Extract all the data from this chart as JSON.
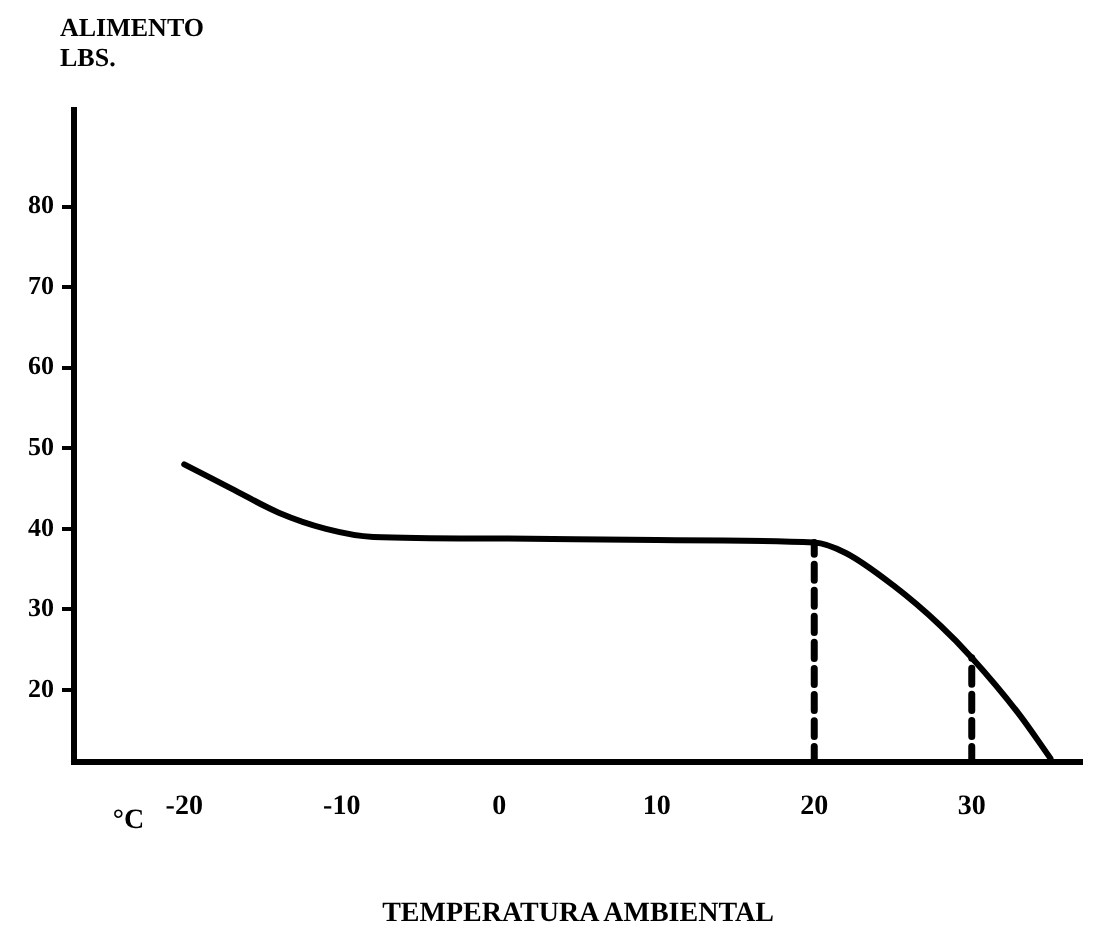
{
  "chart_data": {
    "type": "line",
    "xlabel": "TEMPERATURA AMBIENTAL",
    "ylabel": "ALIMENTO\nLBS.",
    "annotations": [
      "°C"
    ],
    "xlim": [
      -27,
      37
    ],
    "xticks": [
      -20,
      -10,
      0,
      10,
      20,
      30
    ],
    "ylim": [
      11,
      92
    ],
    "yticks": [
      20,
      30,
      40,
      50,
      60,
      70,
      80
    ],
    "grid": false,
    "legend": false,
    "marker": "none",
    "series": [
      {
        "color": "#000000",
        "x": [
          -20,
          -17,
          -14,
          -11,
          -8,
          0,
          10,
          20,
          22,
          25,
          28,
          30,
          33,
          35
        ],
        "values": [
          48,
          45,
          42,
          40,
          39,
          38.8,
          38.6,
          38.3,
          37,
          33,
          28,
          24,
          17,
          11.5
        ]
      },
      {
        "color": "#000000",
        "line_style": "dashed",
        "x": [
          20,
          20
        ],
        "values": [
          11,
          38.3
        ]
      },
      {
        "color": "#000000",
        "line_style": "dashed",
        "x": [
          30,
          30
        ],
        "values": [
          11,
          24
        ]
      }
    ]
  }
}
